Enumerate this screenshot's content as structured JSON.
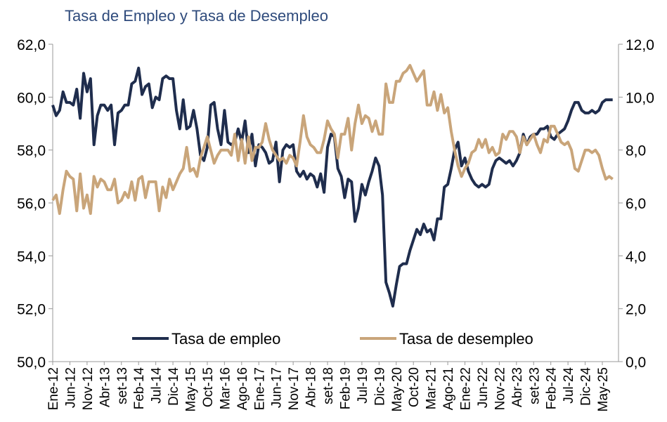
{
  "chart_data": {
    "type": "line",
    "title": "Tasa de Empleo y Tasa de Desempleo",
    "categories": [
      "Ene-12",
      null,
      null,
      null,
      null,
      "Jun-12",
      null,
      null,
      null,
      null,
      "Nov-12",
      null,
      null,
      null,
      null,
      "Abr-13",
      null,
      null,
      null,
      null,
      "set-13",
      null,
      null,
      null,
      null,
      "Feb-14",
      null,
      null,
      null,
      null,
      "Jul-14",
      null,
      null,
      null,
      null,
      "Dic-14",
      null,
      null,
      null,
      null,
      "May-15",
      null,
      null,
      null,
      null,
      "Oct-15",
      null,
      null,
      null,
      null,
      "Mar-16",
      null,
      null,
      null,
      null,
      "Ago-16",
      null,
      null,
      null,
      null,
      "Ene-17",
      null,
      null,
      null,
      null,
      "Jun-17",
      null,
      null,
      null,
      null,
      "Nov-17",
      null,
      null,
      null,
      null,
      "Abr-18",
      null,
      null,
      null,
      null,
      "set-18",
      null,
      null,
      null,
      null,
      "Feb-19",
      null,
      null,
      null,
      null,
      "Jul-19",
      null,
      null,
      null,
      null,
      "Dic-19",
      null,
      null,
      null,
      null,
      "May-20",
      null,
      null,
      null,
      null,
      "Oct-20",
      null,
      null,
      null,
      null,
      "Mar-21",
      null,
      null,
      null,
      null,
      "Ago-21",
      null,
      null,
      null,
      null,
      "Ene-22",
      null,
      null,
      null,
      null,
      "Jun-22",
      null,
      null,
      null,
      null,
      "Nov-22",
      null,
      null,
      null,
      null,
      "Abr-23",
      null,
      null,
      null,
      null,
      "set-23",
      null,
      null,
      null,
      null,
      "Feb-24",
      null,
      null,
      null,
      null,
      "Jul-24",
      null,
      null,
      null,
      null,
      "Dic-24",
      null,
      null,
      null,
      null,
      "May-25",
      null,
      null,
      null
    ],
    "series": [
      {
        "name": "Tasa de empleo",
        "color": "#1f2d4d",
        "axis": "y",
        "values": [
          59.7,
          59.3,
          59.5,
          60.2,
          59.8,
          59.8,
          59.7,
          60.3,
          59.2,
          60.9,
          60.2,
          60.7,
          58.2,
          59.3,
          59.7,
          59.7,
          59.5,
          59.7,
          58.2,
          59.4,
          59.5,
          59.7,
          59.7,
          60.5,
          60.6,
          61.1,
          60.1,
          60.4,
          60.5,
          59.6,
          60.0,
          59.9,
          60.7,
          60.8,
          60.7,
          60.7,
          59.5,
          58.8,
          59.9,
          58.8,
          58.9,
          59.5,
          58.8,
          57.8,
          57.6,
          58.1,
          59.7,
          59.8,
          58.8,
          58.2,
          59.5,
          58.3,
          58.2,
          58.3,
          58.8,
          58.3,
          59.1,
          57.9,
          58.6,
          57.4,
          58.2,
          58.1,
          57.9,
          57.5,
          57.6,
          58.3,
          56.8,
          58.0,
          58.2,
          58.1,
          58.2,
          57.2,
          57.0,
          57.2,
          56.9,
          57.1,
          57.0,
          56.6,
          57.1,
          56.4,
          58.1,
          58.6,
          58.5,
          57.3,
          57.0,
          56.2,
          56.9,
          56.8,
          55.3,
          55.8,
          56.7,
          56.3,
          56.8,
          57.2,
          57.7,
          57.4,
          56.3,
          53.0,
          52.6,
          52.1,
          52.9,
          53.6,
          53.7,
          53.7,
          54.2,
          54.6,
          55.0,
          54.8,
          55.2,
          54.9,
          55.0,
          54.6,
          55.4,
          55.4,
          56.6,
          56.7,
          57.3,
          58.0,
          58.3,
          57.4,
          57.7,
          57.2,
          56.9,
          56.7,
          56.6,
          56.7,
          56.6,
          56.7,
          57.3,
          57.6,
          57.7,
          57.6,
          57.5,
          57.6,
          57.4,
          57.6,
          57.9,
          58.6,
          58.2,
          58.5,
          58.6,
          58.6,
          58.8,
          58.8,
          58.9,
          58.5,
          58.4,
          58.6,
          58.7,
          58.8,
          59.1,
          59.5,
          59.8,
          59.8,
          59.5,
          59.4,
          59.4,
          59.5,
          59.4,
          59.5,
          59.8,
          59.9,
          59.9,
          59.9
        ]
      },
      {
        "name": "Tasa de desempleo",
        "color": "#c9a57a",
        "axis": "y2",
        "values": [
          6.1,
          6.3,
          5.6,
          6.5,
          7.2,
          7.0,
          6.9,
          5.7,
          7.1,
          5.8,
          6.3,
          5.6,
          7.0,
          6.6,
          6.9,
          6.8,
          6.5,
          6.5,
          6.9,
          6.0,
          6.1,
          6.4,
          6.2,
          6.8,
          6.1,
          6.9,
          7.0,
          6.2,
          6.8,
          6.8,
          6.8,
          5.7,
          6.6,
          6.2,
          6.9,
          6.5,
          6.8,
          7.1,
          7.3,
          8.1,
          7.2,
          7.3,
          7.0,
          7.7,
          8.1,
          8.5,
          8.0,
          7.5,
          7.8,
          8.0,
          8.0,
          8.0,
          7.8,
          8.6,
          7.6,
          8.4,
          7.5,
          8.5,
          7.6,
          8.1,
          8.1,
          8.3,
          9.0,
          8.4,
          8.0,
          7.8,
          7.6,
          7.7,
          7.5,
          7.8,
          7.7,
          7.4,
          8.3,
          9.3,
          8.5,
          8.2,
          8.1,
          7.9,
          7.9,
          8.4,
          9.1,
          8.8,
          8.6,
          7.7,
          8.6,
          8.6,
          9.2,
          8.0,
          9.0,
          9.7,
          9.0,
          9.3,
          9.2,
          8.7,
          9.1,
          8.6,
          8.6,
          10.5,
          9.8,
          9.8,
          10.6,
          10.6,
          10.9,
          11.0,
          11.2,
          10.9,
          10.6,
          10.8,
          11.0,
          9.7,
          9.7,
          10.2,
          9.5,
          10.1,
          9.4,
          9.6,
          8.7,
          8.0,
          7.4,
          7.0,
          7.3,
          7.5,
          7.9,
          8.0,
          8.4,
          8.1,
          8.4,
          7.9,
          8.1,
          7.8,
          7.9,
          8.6,
          8.4,
          8.7,
          8.7,
          8.5,
          7.9,
          8.5,
          8.2,
          8.4,
          8.6,
          8.2,
          7.9,
          8.4,
          8.3,
          8.9,
          8.9,
          8.6,
          8.3,
          8.2,
          8.3,
          8.0,
          7.3,
          7.2,
          7.6,
          8.0,
          8.0,
          7.9,
          8.0,
          7.8,
          7.3,
          6.9,
          7.0,
          6.9
        ]
      }
    ],
    "ylim": [
      50,
      62
    ],
    "yticks": [
      {
        "value": 50,
        "label": "50,0"
      },
      {
        "value": 52,
        "label": "52,0"
      },
      {
        "value": 54,
        "label": "54,0"
      },
      {
        "value": 56,
        "label": "56,0"
      },
      {
        "value": 58,
        "label": "58,0"
      },
      {
        "value": 60,
        "label": "60,0"
      },
      {
        "value": 62,
        "label": "62,0"
      }
    ],
    "y2lim": [
      0,
      12
    ],
    "y2ticks": [
      {
        "value": 0,
        "label": "0,0"
      },
      {
        "value": 2,
        "label": "2,0"
      },
      {
        "value": 4,
        "label": "4,0"
      },
      {
        "value": 6,
        "label": "6,0"
      },
      {
        "value": 8,
        "label": "8,0"
      },
      {
        "value": 10,
        "label": "10,0"
      },
      {
        "value": 12,
        "label": "12,0"
      }
    ],
    "grid": false,
    "legend": "bottom"
  }
}
